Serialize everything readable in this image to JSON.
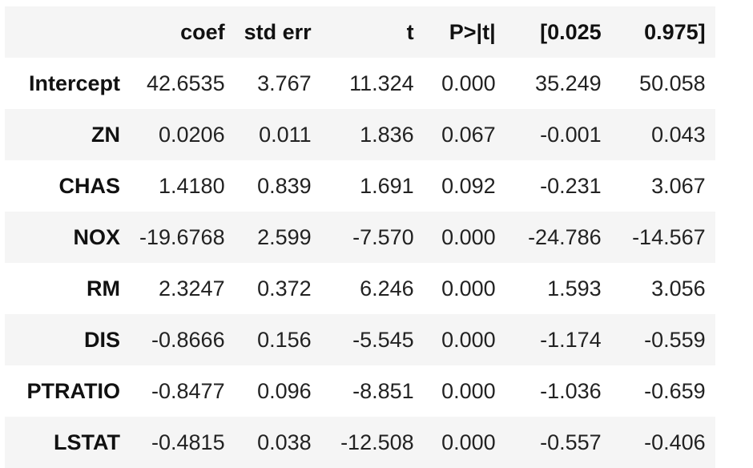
{
  "table": {
    "headers": [
      "",
      "coef",
      "std err",
      "t",
      "P>|t|",
      "[0.025",
      "0.975]"
    ],
    "rows": [
      {
        "label": "Intercept",
        "values": [
          "42.6535",
          "3.767",
          "11.324",
          "0.000",
          "35.249",
          "50.058"
        ]
      },
      {
        "label": "ZN",
        "values": [
          "0.0206",
          "0.011",
          "1.836",
          "0.067",
          "-0.001",
          "0.043"
        ]
      },
      {
        "label": "CHAS",
        "values": [
          "1.4180",
          "0.839",
          "1.691",
          "0.092",
          "-0.231",
          "3.067"
        ]
      },
      {
        "label": "NOX",
        "values": [
          "-19.6768",
          "2.599",
          "-7.570",
          "0.000",
          "-24.786",
          "-14.567"
        ]
      },
      {
        "label": "RM",
        "values": [
          "2.3247",
          "0.372",
          "6.246",
          "0.000",
          "1.593",
          "3.056"
        ]
      },
      {
        "label": "DIS",
        "values": [
          "-0.8666",
          "0.156",
          "-5.545",
          "0.000",
          "-1.174",
          "-0.559"
        ]
      },
      {
        "label": "PTRATIO",
        "values": [
          "-0.8477",
          "0.096",
          "-8.851",
          "0.000",
          "-1.036",
          "-0.659"
        ]
      },
      {
        "label": "LSTAT",
        "values": [
          "-0.4815",
          "0.038",
          "-12.508",
          "0.000",
          "-0.557",
          "-0.406"
        ]
      }
    ]
  },
  "colors": {
    "stripe": "#f5f5f5",
    "background": "#ffffff",
    "text": "#222222"
  }
}
